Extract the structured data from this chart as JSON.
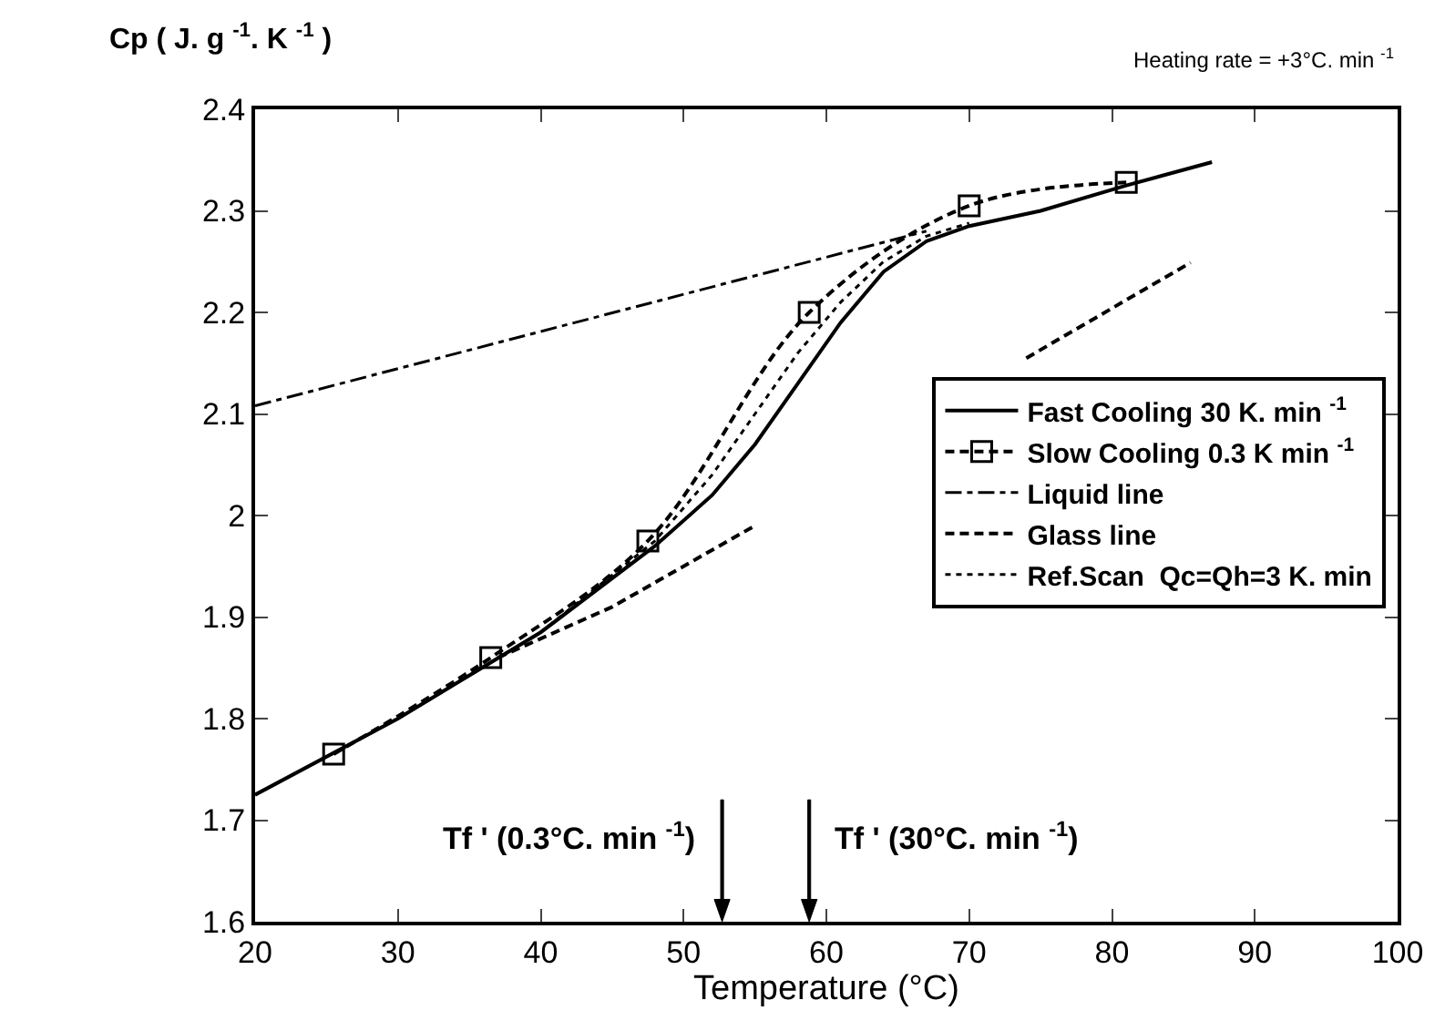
{
  "chart_data": {
    "type": "line",
    "title": "Cp ( J. g $^{-1}$. K $^{-1}$ )",
    "subtitle": "Heating rate = +3°C. min $^{-1}$",
    "xlabel": "Temperature (°C)",
    "xlim": [
      20,
      100
    ],
    "xticks": [
      20,
      30,
      40,
      50,
      60,
      70,
      80,
      90,
      100
    ],
    "ylim": [
      1.6,
      2.4
    ],
    "yticks": [
      1.6,
      1.7,
      1.8,
      1.9,
      2,
      2.1,
      2.2,
      2.3,
      2.4
    ],
    "legend": "right",
    "marker": "none",
    "series": [
      {
        "name": "Fast Cooling 30 K. min $^{-1}$",
        "color": "#000000",
        "line_style": "solid",
        "x": [
          20,
          30,
          40,
          48,
          52,
          55,
          58,
          61,
          64,
          67,
          70,
          75,
          81,
          87
        ],
        "values": [
          1.725,
          1.8,
          1.885,
          1.97,
          2.02,
          2.07,
          2.13,
          2.19,
          2.24,
          2.27,
          2.285,
          2.3,
          2.325,
          2.348
        ]
      },
      {
        "name": "Slow Cooling 0.3 K min $^{-1}$",
        "color": "#000000",
        "line_style": "dashed",
        "marker": "square",
        "x": [
          25.5,
          36.5,
          47.5,
          58.8,
          70,
          81
        ],
        "values": [
          1.765,
          1.86,
          1.975,
          2.2,
          2.305,
          2.328
        ]
      },
      {
        "name": "Liquid line",
        "color": "#000000",
        "line_style": "dashdot",
        "x": [
          20,
          67
        ],
        "values": [
          2.108,
          2.28
        ]
      },
      {
        "name": "Glass line",
        "color": "#000000",
        "line_style": "dashed",
        "x": [
          37,
          45,
          55,
          60,
          70,
          74,
          85.5
        ],
        "values": [
          1.86,
          1.91,
          1.99,
          null,
          null,
          2.155,
          2.249
        ]
      },
      {
        "name": "Ref.Scan  Qc=Qh=3 K. min",
        "color": "#000000",
        "line_style": "dotted",
        "x": [
          20,
          30,
          40,
          48,
          52,
          55,
          58,
          61,
          64,
          67,
          70
        ],
        "values": [
          1.725,
          1.8,
          1.885,
          1.975,
          2.04,
          2.1,
          2.16,
          2.21,
          2.25,
          2.275,
          2.288
        ]
      }
    ],
    "ref_lines": [
      {
        "axis": "x",
        "value": 52.7,
        "label": "Tf ' (0.3°C. min $^{-1}$)"
      },
      {
        "axis": "x",
        "value": 58.8,
        "label": "Tf ' (30°C. min $^{-1}$)"
      }
    ]
  }
}
